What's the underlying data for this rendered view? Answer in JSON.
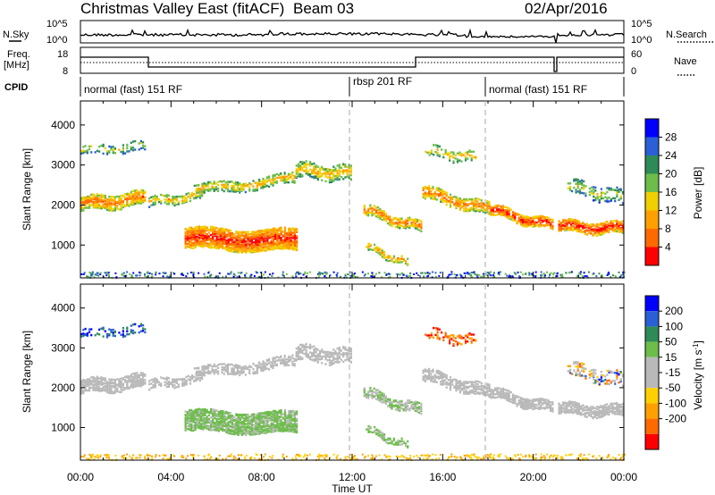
{
  "header": {
    "title": "Christmas Valley East (fitACF)",
    "beam": "Beam 03",
    "date": "02/Apr/2016"
  },
  "noise_panel": {
    "left_label": "N.Sky",
    "right_label": "N.Search",
    "left_ticks": [
      "10^5",
      "10^0"
    ],
    "right_ticks": [
      "10^5",
      "10^0"
    ]
  },
  "freq_panel": {
    "left_label_line1": "Freq.",
    "left_label_line2": "[MHz]",
    "right_label": "Nave",
    "left_ticks": [
      "18",
      "8"
    ],
    "right_ticks": [
      "60",
      "0"
    ]
  },
  "cpid": {
    "label": "CPID",
    "modes": [
      "normal (fast) 151 RF",
      "rbsp 201 RF",
      "normal (fast) 151 RF"
    ]
  },
  "colors": {
    "power_scale": [
      "#0000ff",
      "#2a5fd6",
      "#2e8b57",
      "#6cbd4a",
      "#f0d000",
      "#ffa000",
      "#ff6a00",
      "#ff0000"
    ],
    "velocity_scale": [
      "#0000ff",
      "#2a5fd6",
      "#2e8b57",
      "#6cbd4a",
      "#b9b9b9",
      "#b9b9b9",
      "#ffd000",
      "#ffa000",
      "#ff6a00",
      "#ff0000"
    ],
    "ground_scatter": "#b9b9b9"
  },
  "chart_data": [
    {
      "type": "heatmap",
      "name": "power",
      "xlabel": "",
      "ylabel": "Slant Range [km]",
      "xlim": [
        "00:00",
        "24:00"
      ],
      "ylim": [
        180,
        4600
      ],
      "yticks": [
        1000,
        2000,
        3000,
        4000
      ],
      "colorbar": {
        "label": "Power [dB]",
        "ticks": [
          "28",
          "24",
          "20",
          "16",
          "12",
          "8",
          "4"
        ]
      },
      "mode_boundaries": [
        "12:00",
        "18:00"
      ]
    },
    {
      "type": "heatmap",
      "name": "velocity",
      "xlabel": "Time UT",
      "ylabel": "Slant Range [km]",
      "xlim": [
        "00:00",
        "24:00"
      ],
      "ylim": [
        180,
        4600
      ],
      "xticks": [
        "00:00",
        "04:00",
        "08:00",
        "12:00",
        "16:00",
        "20:00",
        "00:00"
      ],
      "yticks": [
        1000,
        2000,
        3000,
        4000
      ],
      "colorbar": {
        "label": "Velocity [m s",
        "label_exponent": "-1",
        "label_close": "]",
        "ticks": [
          "200",
          "100",
          "50",
          "15",
          "-15",
          "-50",
          "-100",
          "-200"
        ]
      }
    }
  ]
}
